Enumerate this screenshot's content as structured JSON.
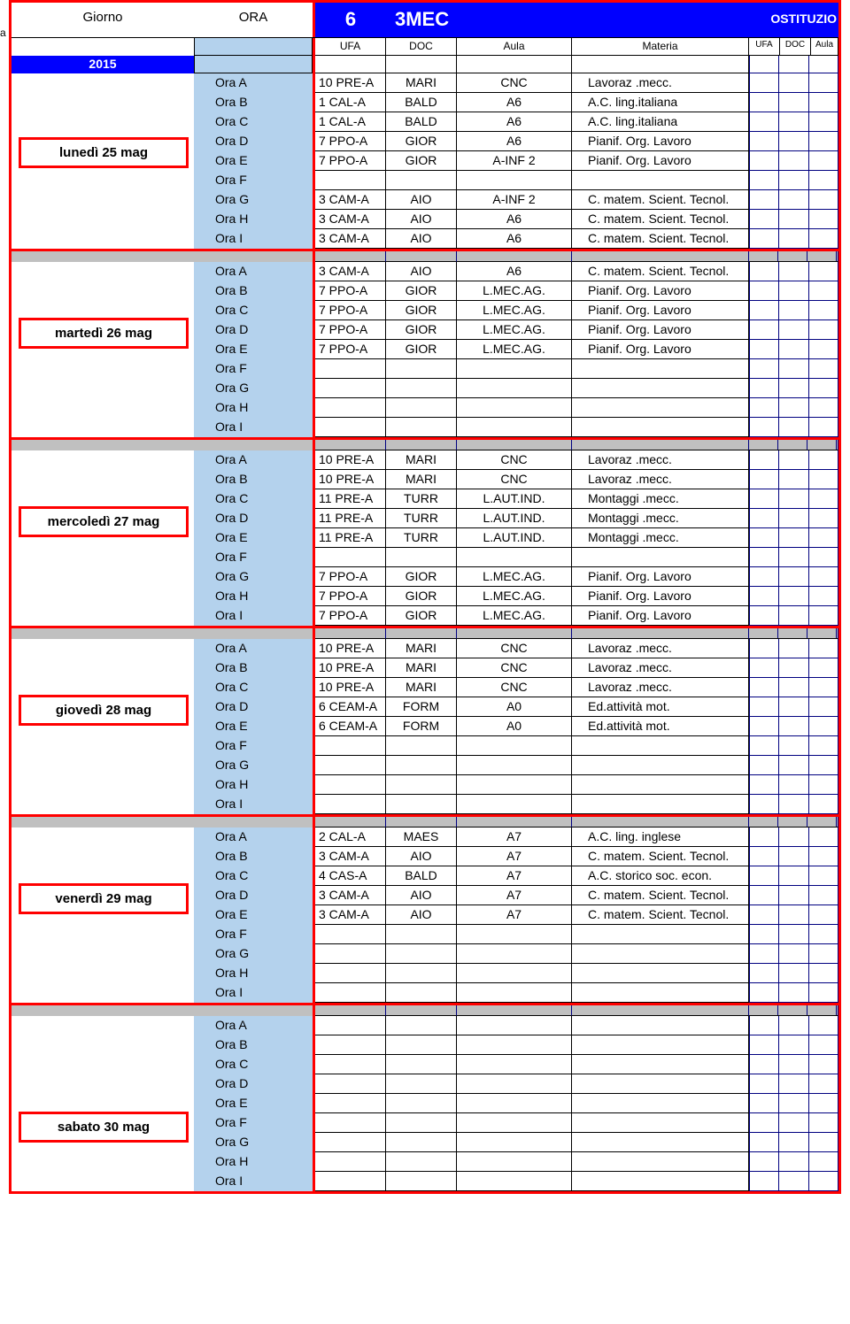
{
  "header": {
    "giorno": "Giorno",
    "ora": "ORA",
    "class_num": "6",
    "class_name": "3MEC",
    "sostituzio": "OSTITUZIO",
    "sub_ufa": "UFA",
    "sub_doc": "DOC",
    "sub_aula": "Aula",
    "sub_materia": "Materia",
    "sub_s1": "UFA",
    "sub_s2": "DOC",
    "sub_s3": "Aula",
    "year": "2015",
    "left_edge": "a"
  },
  "ora_labels": [
    "Ora A",
    "Ora B",
    "Ora C",
    "Ora D",
    "Ora E",
    "Ora F",
    "Ora G",
    "Ora H",
    "Ora I"
  ],
  "days": [
    {
      "label": "lunedì 25 mag",
      "rows": [
        {
          "ufa": "10 PRE-A",
          "doc": "MARI",
          "aula": "CNC",
          "mat": "Lavoraz .mecc."
        },
        {
          "ufa": "1 CAL-A",
          "doc": "BALD",
          "aula": "A6",
          "mat": "A.C. ling.italiana"
        },
        {
          "ufa": "1 CAL-A",
          "doc": "BALD",
          "aula": "A6",
          "mat": "A.C. ling.italiana"
        },
        {
          "ufa": "7 PPO-A",
          "doc": "GIOR",
          "aula": "A6",
          "mat": "Pianif. Org. Lavoro"
        },
        {
          "ufa": "7 PPO-A",
          "doc": "GIOR",
          "aula": "A-INF 2",
          "mat": "Pianif. Org. Lavoro"
        },
        {
          "ufa": "",
          "doc": "",
          "aula": "",
          "mat": ""
        },
        {
          "ufa": "3 CAM-A",
          "doc": "AIO",
          "aula": "A-INF 2",
          "mat": "C. matem. Scient. Tecnol."
        },
        {
          "ufa": "3 CAM-A",
          "doc": "AIO",
          "aula": "A6",
          "mat": "C. matem. Scient. Tecnol."
        },
        {
          "ufa": "3 CAM-A",
          "doc": "AIO",
          "aula": "A6",
          "mat": "C. matem. Scient. Tecnol."
        }
      ]
    },
    {
      "label": "martedì 26 mag",
      "rows": [
        {
          "ufa": "3 CAM-A",
          "doc": "AIO",
          "aula": "A6",
          "mat": "C. matem. Scient. Tecnol."
        },
        {
          "ufa": "7 PPO-A",
          "doc": "GIOR",
          "aula": "L.MEC.AG.",
          "mat": "Pianif. Org. Lavoro"
        },
        {
          "ufa": "7 PPO-A",
          "doc": "GIOR",
          "aula": "L.MEC.AG.",
          "mat": "Pianif. Org. Lavoro"
        },
        {
          "ufa": "7 PPO-A",
          "doc": "GIOR",
          "aula": "L.MEC.AG.",
          "mat": "Pianif. Org. Lavoro"
        },
        {
          "ufa": "7 PPO-A",
          "doc": "GIOR",
          "aula": "L.MEC.AG.",
          "mat": "Pianif. Org. Lavoro"
        },
        {
          "ufa": "",
          "doc": "",
          "aula": "",
          "mat": ""
        },
        {
          "ufa": "",
          "doc": "",
          "aula": "",
          "mat": ""
        },
        {
          "ufa": "",
          "doc": "",
          "aula": "",
          "mat": ""
        },
        {
          "ufa": "",
          "doc": "",
          "aula": "",
          "mat": ""
        }
      ]
    },
    {
      "label": "mercoledì 27 mag",
      "rows": [
        {
          "ufa": "10 PRE-A",
          "doc": "MARI",
          "aula": "CNC",
          "mat": "Lavoraz .mecc."
        },
        {
          "ufa": "10 PRE-A",
          "doc": "MARI",
          "aula": "CNC",
          "mat": "Lavoraz .mecc."
        },
        {
          "ufa": "11 PRE-A",
          "doc": "TURR",
          "aula": "L.AUT.IND.",
          "mat": "Montaggi .mecc."
        },
        {
          "ufa": "11 PRE-A",
          "doc": "TURR",
          "aula": "L.AUT.IND.",
          "mat": "Montaggi .mecc."
        },
        {
          "ufa": "11 PRE-A",
          "doc": "TURR",
          "aula": "L.AUT.IND.",
          "mat": "Montaggi .mecc."
        },
        {
          "ufa": "",
          "doc": "",
          "aula": "",
          "mat": ""
        },
        {
          "ufa": "7 PPO-A",
          "doc": "GIOR",
          "aula": "L.MEC.AG.",
          "mat": "Pianif. Org. Lavoro"
        },
        {
          "ufa": "7 PPO-A",
          "doc": "GIOR",
          "aula": "L.MEC.AG.",
          "mat": "Pianif. Org. Lavoro"
        },
        {
          "ufa": "7 PPO-A",
          "doc": "GIOR",
          "aula": "L.MEC.AG.",
          "mat": "Pianif. Org. Lavoro"
        }
      ]
    },
    {
      "label": "giovedì 28 mag",
      "rows": [
        {
          "ufa": "10 PRE-A",
          "doc": "MARI",
          "aula": "CNC",
          "mat": "Lavoraz .mecc."
        },
        {
          "ufa": "10 PRE-A",
          "doc": "MARI",
          "aula": "CNC",
          "mat": "Lavoraz .mecc."
        },
        {
          "ufa": "10 PRE-A",
          "doc": "MARI",
          "aula": "CNC",
          "mat": "Lavoraz .mecc."
        },
        {
          "ufa": "6 CEAM-A",
          "doc": "FORM",
          "aula": "A0",
          "mat": "Ed.attività mot."
        },
        {
          "ufa": "6 CEAM-A",
          "doc": "FORM",
          "aula": "A0",
          "mat": "Ed.attività mot."
        },
        {
          "ufa": "",
          "doc": "",
          "aula": "",
          "mat": ""
        },
        {
          "ufa": "",
          "doc": "",
          "aula": "",
          "mat": ""
        },
        {
          "ufa": "",
          "doc": "",
          "aula": "",
          "mat": ""
        },
        {
          "ufa": "",
          "doc": "",
          "aula": "",
          "mat": ""
        }
      ]
    },
    {
      "label": "venerdì 29 mag",
      "rows": [
        {
          "ufa": "2 CAL-A",
          "doc": "MAES",
          "aula": "A7",
          "mat": "A.C.  ling. inglese"
        },
        {
          "ufa": "3 CAM-A",
          "doc": "AIO",
          "aula": "A7",
          "mat": "C. matem. Scient. Tecnol."
        },
        {
          "ufa": "4 CAS-A",
          "doc": "BALD",
          "aula": "A7",
          "mat": "A.C. storico soc. econ."
        },
        {
          "ufa": "3 CAM-A",
          "doc": "AIO",
          "aula": "A7",
          "mat": "C. matem. Scient. Tecnol."
        },
        {
          "ufa": "3 CAM-A",
          "doc": "AIO",
          "aula": "A7",
          "mat": "C. matem. Scient. Tecnol."
        },
        {
          "ufa": "",
          "doc": "",
          "aula": "",
          "mat": ""
        },
        {
          "ufa": "",
          "doc": "",
          "aula": "",
          "mat": ""
        },
        {
          "ufa": "",
          "doc": "",
          "aula": "",
          "mat": ""
        },
        {
          "ufa": "",
          "doc": "",
          "aula": "",
          "mat": ""
        }
      ]
    },
    {
      "label": "sabato 30 mag",
      "rows": [
        {
          "ufa": "",
          "doc": "",
          "aula": "",
          "mat": ""
        },
        {
          "ufa": "",
          "doc": "",
          "aula": "",
          "mat": ""
        },
        {
          "ufa": "",
          "doc": "",
          "aula": "",
          "mat": ""
        },
        {
          "ufa": "",
          "doc": "",
          "aula": "",
          "mat": ""
        },
        {
          "ufa": "",
          "doc": "",
          "aula": "",
          "mat": ""
        },
        {
          "ufa": "",
          "doc": "",
          "aula": "",
          "mat": ""
        },
        {
          "ufa": "",
          "doc": "",
          "aula": "",
          "mat": ""
        },
        {
          "ufa": "",
          "doc": "",
          "aula": "",
          "mat": ""
        },
        {
          "ufa": "",
          "doc": "",
          "aula": "",
          "mat": ""
        }
      ]
    }
  ]
}
